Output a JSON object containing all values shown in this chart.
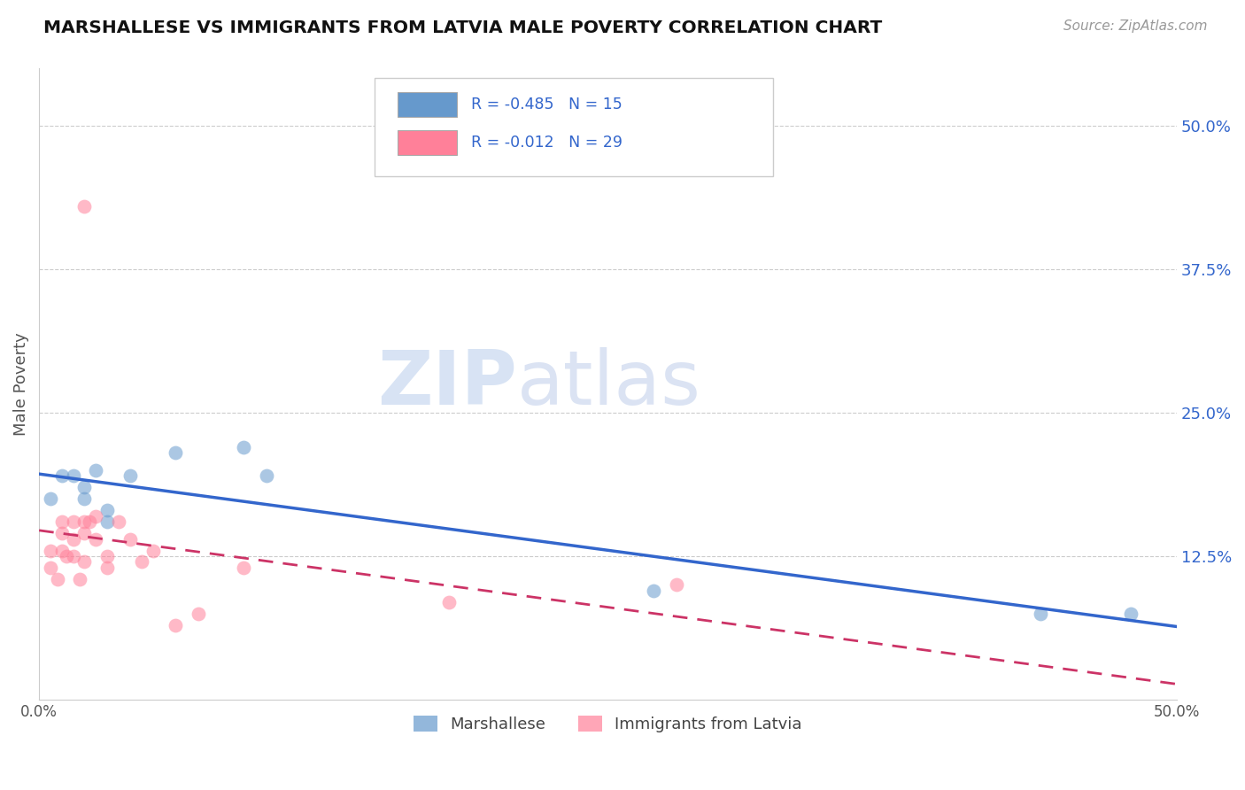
{
  "title": "MARSHALLESE VS IMMIGRANTS FROM LATVIA MALE POVERTY CORRELATION CHART",
  "source": "Source: ZipAtlas.com",
  "ylabel": "Male Poverty",
  "right_yticks": [
    "50.0%",
    "37.5%",
    "25.0%",
    "12.5%"
  ],
  "right_ytick_vals": [
    0.5,
    0.375,
    0.25,
    0.125
  ],
  "xlim": [
    0.0,
    0.5
  ],
  "ylim": [
    0.0,
    0.55
  ],
  "legend_items": [
    {
      "label": "R = -0.485   N = 15",
      "color": "#aec6f0",
      "text_color": "#3366cc"
    },
    {
      "label": "R = -0.012   N = 29",
      "color": "#f4a7b9",
      "text_color": "#3366cc"
    }
  ],
  "marshallese_x": [
    0.005,
    0.01,
    0.015,
    0.02,
    0.02,
    0.025,
    0.03,
    0.04,
    0.06,
    0.09,
    0.1,
    0.27,
    0.44,
    0.48,
    0.03
  ],
  "marshallese_y": [
    0.175,
    0.195,
    0.195,
    0.185,
    0.175,
    0.2,
    0.165,
    0.195,
    0.215,
    0.22,
    0.195,
    0.095,
    0.075,
    0.075,
    0.155
  ],
  "latvia_x": [
    0.005,
    0.005,
    0.008,
    0.01,
    0.01,
    0.01,
    0.012,
    0.015,
    0.015,
    0.015,
    0.018,
    0.02,
    0.02,
    0.02,
    0.022,
    0.025,
    0.025,
    0.03,
    0.03,
    0.035,
    0.04,
    0.045,
    0.05,
    0.06,
    0.07,
    0.09,
    0.18,
    0.28,
    0.02
  ],
  "latvia_y": [
    0.13,
    0.115,
    0.105,
    0.155,
    0.145,
    0.13,
    0.125,
    0.155,
    0.14,
    0.125,
    0.105,
    0.155,
    0.145,
    0.12,
    0.155,
    0.16,
    0.14,
    0.125,
    0.115,
    0.155,
    0.14,
    0.12,
    0.13,
    0.065,
    0.075,
    0.115,
    0.085,
    0.1,
    0.43
  ],
  "marshallese_color": "#6699cc",
  "latvia_color": "#ff8099",
  "marshallese_line_color": "#3366cc",
  "latvia_line_color": "#cc3366",
  "watermark_zip": "ZIP",
  "watermark_atlas": "atlas",
  "background_color": "#ffffff",
  "grid_color": "#cccccc"
}
